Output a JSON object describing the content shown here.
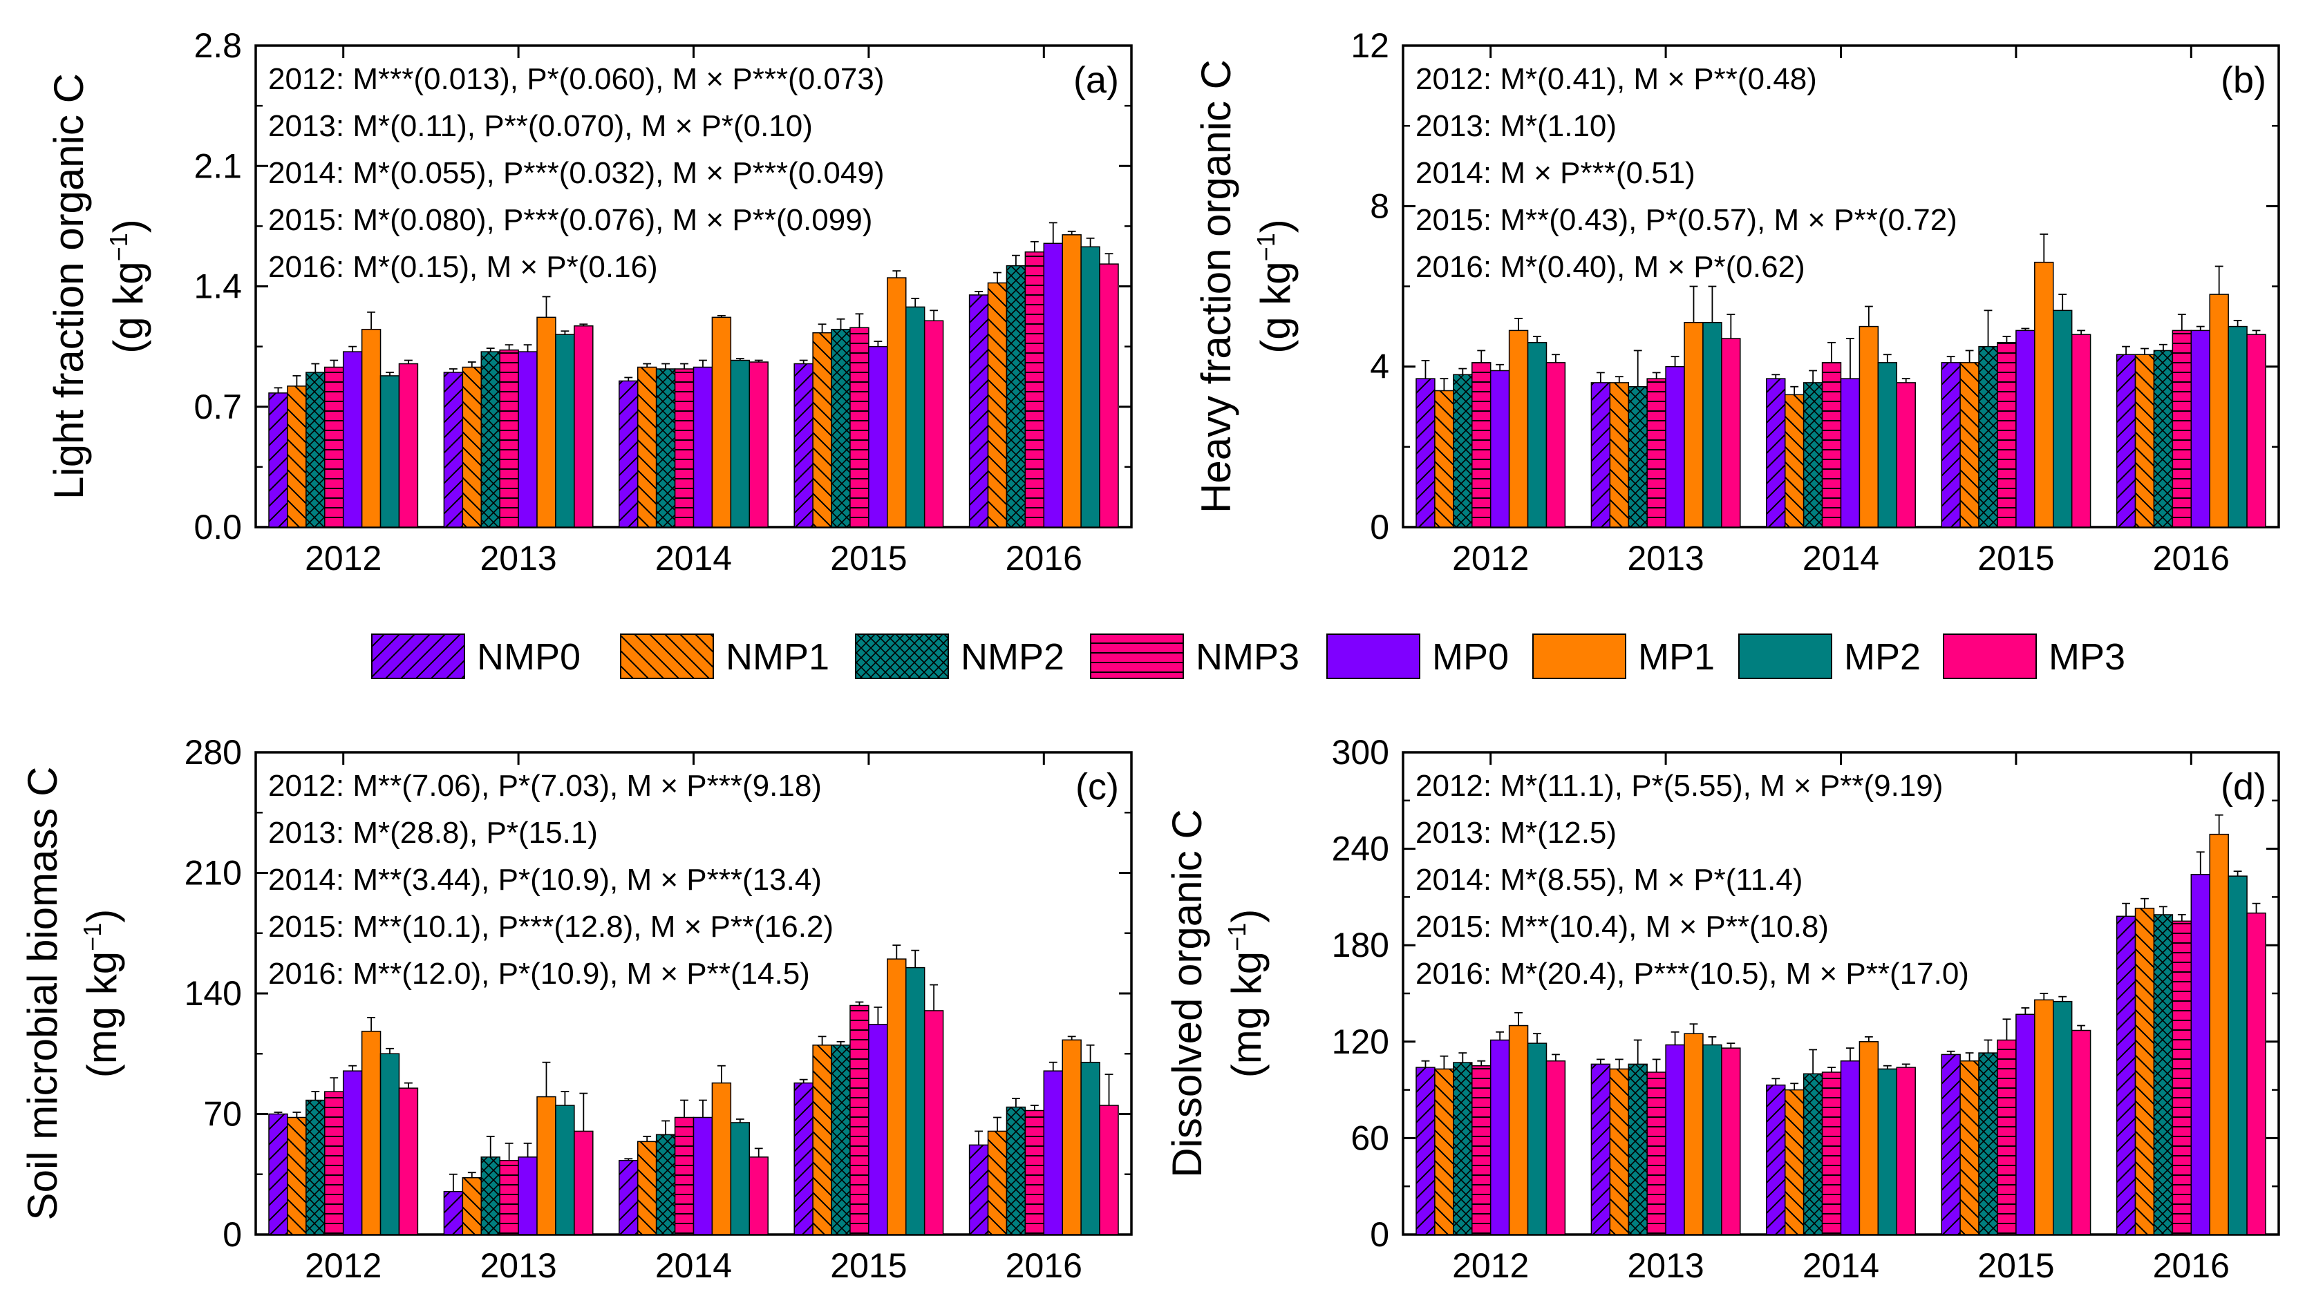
{
  "colors": {
    "NMP0": "#7F00FF",
    "NMP1": "#FF8000",
    "NMP2": "#007F7F",
    "NMP3": "#FF0080",
    "MP0": "#7F00FF",
    "MP1": "#FF8000",
    "MP2": "#007F7F",
    "MP3": "#FF0080",
    "axis": "#000000",
    "background": "#FFFFFF"
  },
  "patterns": {
    "NMP0": "diag-right",
    "NMP1": "diag-left",
    "NMP2": "crosshatch",
    "NMP3": "horizontal",
    "MP0": "solid",
    "MP1": "solid",
    "MP2": "solid",
    "MP3": "solid"
  },
  "legend": {
    "entries": [
      "NMP0",
      "NMP1",
      "NMP2",
      "NMP3",
      "MP0",
      "MP1",
      "MP2",
      "MP3"
    ]
  },
  "chart_data": [
    {
      "id": "a",
      "type": "bar",
      "panel_label": "(a)",
      "ylabel_line1": "Light fraction organic C",
      "ylabel_unit": "(g kg",
      "ylabel_exp": "−1",
      "ylabel_close": ")",
      "ylim": [
        0,
        2.8
      ],
      "yticks": [
        "0.0",
        "0.7",
        "1.4",
        "2.1",
        "2.8"
      ],
      "categories": [
        "2012",
        "2013",
        "2014",
        "2015",
        "2016"
      ],
      "annotations": [
        "2012: M***(0.013), P*(0.060), M × P***(0.073)",
        "2013: M*(0.11), P**(0.070), M × P*(0.10)",
        "2014: M*(0.055), P***(0.032), M × P***(0.049)",
        "2015: M*(0.080), P***(0.076), M × P**(0.099)",
        "2016: M*(0.15), M × P*(0.16)"
      ],
      "series": [
        {
          "name": "NMP0",
          "values": [
            0.78,
            0.9,
            0.85,
            0.95,
            1.35
          ],
          "errors": [
            0.03,
            0.02,
            0.02,
            0.02,
            0.02
          ]
        },
        {
          "name": "NMP1",
          "values": [
            0.82,
            0.93,
            0.93,
            1.13,
            1.42
          ],
          "errors": [
            0.06,
            0.03,
            0.02,
            0.05,
            0.06
          ]
        },
        {
          "name": "NMP2",
          "values": [
            0.9,
            1.02,
            0.92,
            1.15,
            1.52
          ],
          "errors": [
            0.05,
            0.02,
            0.03,
            0.06,
            0.06
          ]
        },
        {
          "name": "NMP3",
          "values": [
            0.93,
            1.03,
            0.92,
            1.16,
            1.6
          ],
          "errors": [
            0.04,
            0.03,
            0.03,
            0.08,
            0.06
          ]
        },
        {
          "name": "MP0",
          "values": [
            1.02,
            1.02,
            0.93,
            1.05,
            1.65
          ],
          "errors": [
            0.03,
            0.04,
            0.04,
            0.03,
            0.12
          ]
        },
        {
          "name": "MP1",
          "values": [
            1.15,
            1.22,
            1.22,
            1.45,
            1.7
          ],
          "errors": [
            0.1,
            0.12,
            0.01,
            0.04,
            0.02
          ]
        },
        {
          "name": "MP2",
          "values": [
            0.88,
            1.12,
            0.97,
            1.28,
            1.63
          ],
          "errors": [
            0.02,
            0.02,
            0.01,
            0.05,
            0.05
          ]
        },
        {
          "name": "MP3",
          "values": [
            0.95,
            1.17,
            0.96,
            1.2,
            1.53
          ],
          "errors": [
            0.02,
            0.01,
            0.01,
            0.06,
            0.06
          ]
        }
      ]
    },
    {
      "id": "b",
      "type": "bar",
      "panel_label": "(b)",
      "ylabel_line1": "Heavy fraction organic C",
      "ylabel_unit": "(g kg",
      "ylabel_exp": "−1",
      "ylabel_close": ")",
      "ylim": [
        0,
        12
      ],
      "yticks": [
        "0",
        "4",
        "8",
        "12"
      ],
      "categories": [
        "2012",
        "2013",
        "2014",
        "2015",
        "2016"
      ],
      "annotations": [
        "2012: M*(0.41), M × P**(0.48)",
        "2013: M*(1.10)",
        "2014: M × P***(0.51)",
        "2015: M**(0.43), P*(0.57), M × P**(0.72)",
        "2016: M*(0.40), M × P*(0.62)"
      ],
      "series": [
        {
          "name": "NMP0",
          "values": [
            3.7,
            3.6,
            3.7,
            4.1,
            4.3
          ],
          "errors": [
            0.45,
            0.25,
            0.1,
            0.15,
            0.2
          ]
        },
        {
          "name": "NMP1",
          "values": [
            3.4,
            3.6,
            3.3,
            4.1,
            4.3
          ],
          "errors": [
            0.3,
            0.15,
            0.2,
            0.3,
            0.15
          ]
        },
        {
          "name": "NMP2",
          "values": [
            3.8,
            3.5,
            3.6,
            4.5,
            4.4
          ],
          "errors": [
            0.15,
            0.9,
            0.3,
            0.9,
            0.15
          ]
        },
        {
          "name": "NMP3",
          "values": [
            4.1,
            3.7,
            4.1,
            4.6,
            4.9
          ],
          "errors": [
            0.3,
            0.15,
            0.5,
            0.15,
            0.4
          ]
        },
        {
          "name": "MP0",
          "values": [
            3.9,
            4.0,
            3.7,
            4.9,
            4.9
          ],
          "errors": [
            0.15,
            0.25,
            1.0,
            0.05,
            0.1
          ]
        },
        {
          "name": "MP1",
          "values": [
            4.9,
            5.1,
            5.0,
            6.6,
            5.8
          ],
          "errors": [
            0.3,
            0.9,
            0.5,
            0.7,
            0.7
          ]
        },
        {
          "name": "MP2",
          "values": [
            4.6,
            5.1,
            4.1,
            5.4,
            5.0
          ],
          "errors": [
            0.15,
            0.9,
            0.2,
            0.4,
            0.15
          ]
        },
        {
          "name": "MP3",
          "values": [
            4.1,
            4.7,
            3.6,
            4.8,
            4.8
          ],
          "errors": [
            0.2,
            0.6,
            0.1,
            0.1,
            0.1
          ]
        }
      ]
    },
    {
      "id": "c",
      "type": "bar",
      "panel_label": "(c)",
      "ylabel_line1": "Soil microbial biomass C",
      "ylabel_unit": "(mg kg",
      "ylabel_exp": "−1",
      "ylabel_close": ")",
      "ylim": [
        0,
        280
      ],
      "yticks": [
        "0",
        "70",
        "140",
        "210",
        "280"
      ],
      "categories": [
        "2012",
        "2013",
        "2014",
        "2015",
        "2016"
      ],
      "annotations": [
        "2012: M**(7.06), P*(7.03), M × P***(9.18)",
        "2013: M*(28.8), P*(15.1)",
        "2014: M**(3.44), P*(10.9), M × P***(13.4)",
        "2015: M**(10.1), P***(12.8), M × P**(16.2)",
        "2016: M**(12.0), P*(10.9), M × P**(14.5)"
      ],
      "series": [
        {
          "name": "NMP0",
          "values": [
            70,
            25,
            43,
            88,
            52
          ],
          "errors": [
            1,
            10,
            1,
            2,
            8
          ]
        },
        {
          "name": "NMP1",
          "values": [
            68,
            33,
            54,
            110,
            60
          ],
          "errors": [
            3,
            3,
            3,
            5,
            8
          ]
        },
        {
          "name": "NMP2",
          "values": [
            78,
            45,
            58,
            110,
            74
          ],
          "errors": [
            5,
            12,
            8,
            2,
            5
          ]
        },
        {
          "name": "NMP3",
          "values": [
            83,
            43,
            68,
            133,
            72
          ],
          "errors": [
            8,
            10,
            10,
            2,
            3
          ]
        },
        {
          "name": "MP0",
          "values": [
            95,
            45,
            68,
            122,
            95
          ],
          "errors": [
            3,
            8,
            10,
            10,
            5
          ]
        },
        {
          "name": "MP1",
          "values": [
            118,
            80,
            88,
            160,
            113
          ],
          "errors": [
            8,
            20,
            10,
            8,
            2
          ]
        },
        {
          "name": "MP2",
          "values": [
            105,
            75,
            65,
            155,
            100
          ],
          "errors": [
            3,
            8,
            2,
            10,
            10
          ]
        },
        {
          "name": "MP3",
          "values": [
            85,
            60,
            45,
            130,
            75
          ],
          "errors": [
            3,
            22,
            5,
            15,
            18
          ]
        }
      ]
    },
    {
      "id": "d",
      "type": "bar",
      "panel_label": "(d)",
      "ylabel_line1": "Dissolved organic C",
      "ylabel_unit": "(mg kg",
      "ylabel_exp": "−1",
      "ylabel_close": ")",
      "ylim": [
        0,
        300
      ],
      "yticks": [
        "0",
        "60",
        "120",
        "180",
        "240",
        "300"
      ],
      "categories": [
        "2012",
        "2013",
        "2014",
        "2015",
        "2016"
      ],
      "annotations": [
        "2012: M*(11.1), P*(5.55), M × P**(9.19)",
        "2013: M*(12.5)",
        "2014: M*(8.55), M × P*(11.4)",
        "2015: M**(10.4), M × P**(10.8)",
        "2016: M*(20.4), P***(10.5), M × P**(17.0)"
      ],
      "series": [
        {
          "name": "NMP0",
          "values": [
            104,
            106,
            93,
            112,
            198
          ],
          "errors": [
            4,
            3,
            4,
            2,
            8
          ]
        },
        {
          "name": "NMP1",
          "values": [
            103,
            103,
            90,
            108,
            203
          ],
          "errors": [
            8,
            6,
            4,
            5,
            6
          ]
        },
        {
          "name": "NMP2",
          "values": [
            107,
            106,
            100,
            113,
            199
          ],
          "errors": [
            6,
            15,
            15,
            8,
            5
          ]
        },
        {
          "name": "NMP3",
          "values": [
            105,
            101,
            101,
            121,
            195
          ],
          "errors": [
            3,
            8,
            3,
            13,
            4
          ]
        },
        {
          "name": "MP0",
          "values": [
            121,
            118,
            108,
            137,
            224
          ],
          "errors": [
            5,
            8,
            8,
            4,
            14
          ]
        },
        {
          "name": "MP1",
          "values": [
            130,
            125,
            120,
            146,
            249
          ],
          "errors": [
            8,
            6,
            3,
            4,
            12
          ]
        },
        {
          "name": "MP2",
          "values": [
            119,
            118,
            103,
            145,
            223
          ],
          "errors": [
            6,
            5,
            2,
            3,
            3
          ]
        },
        {
          "name": "MP3",
          "values": [
            108,
            116,
            104,
            127,
            200
          ],
          "errors": [
            4,
            3,
            2,
            3,
            6
          ]
        }
      ]
    }
  ]
}
